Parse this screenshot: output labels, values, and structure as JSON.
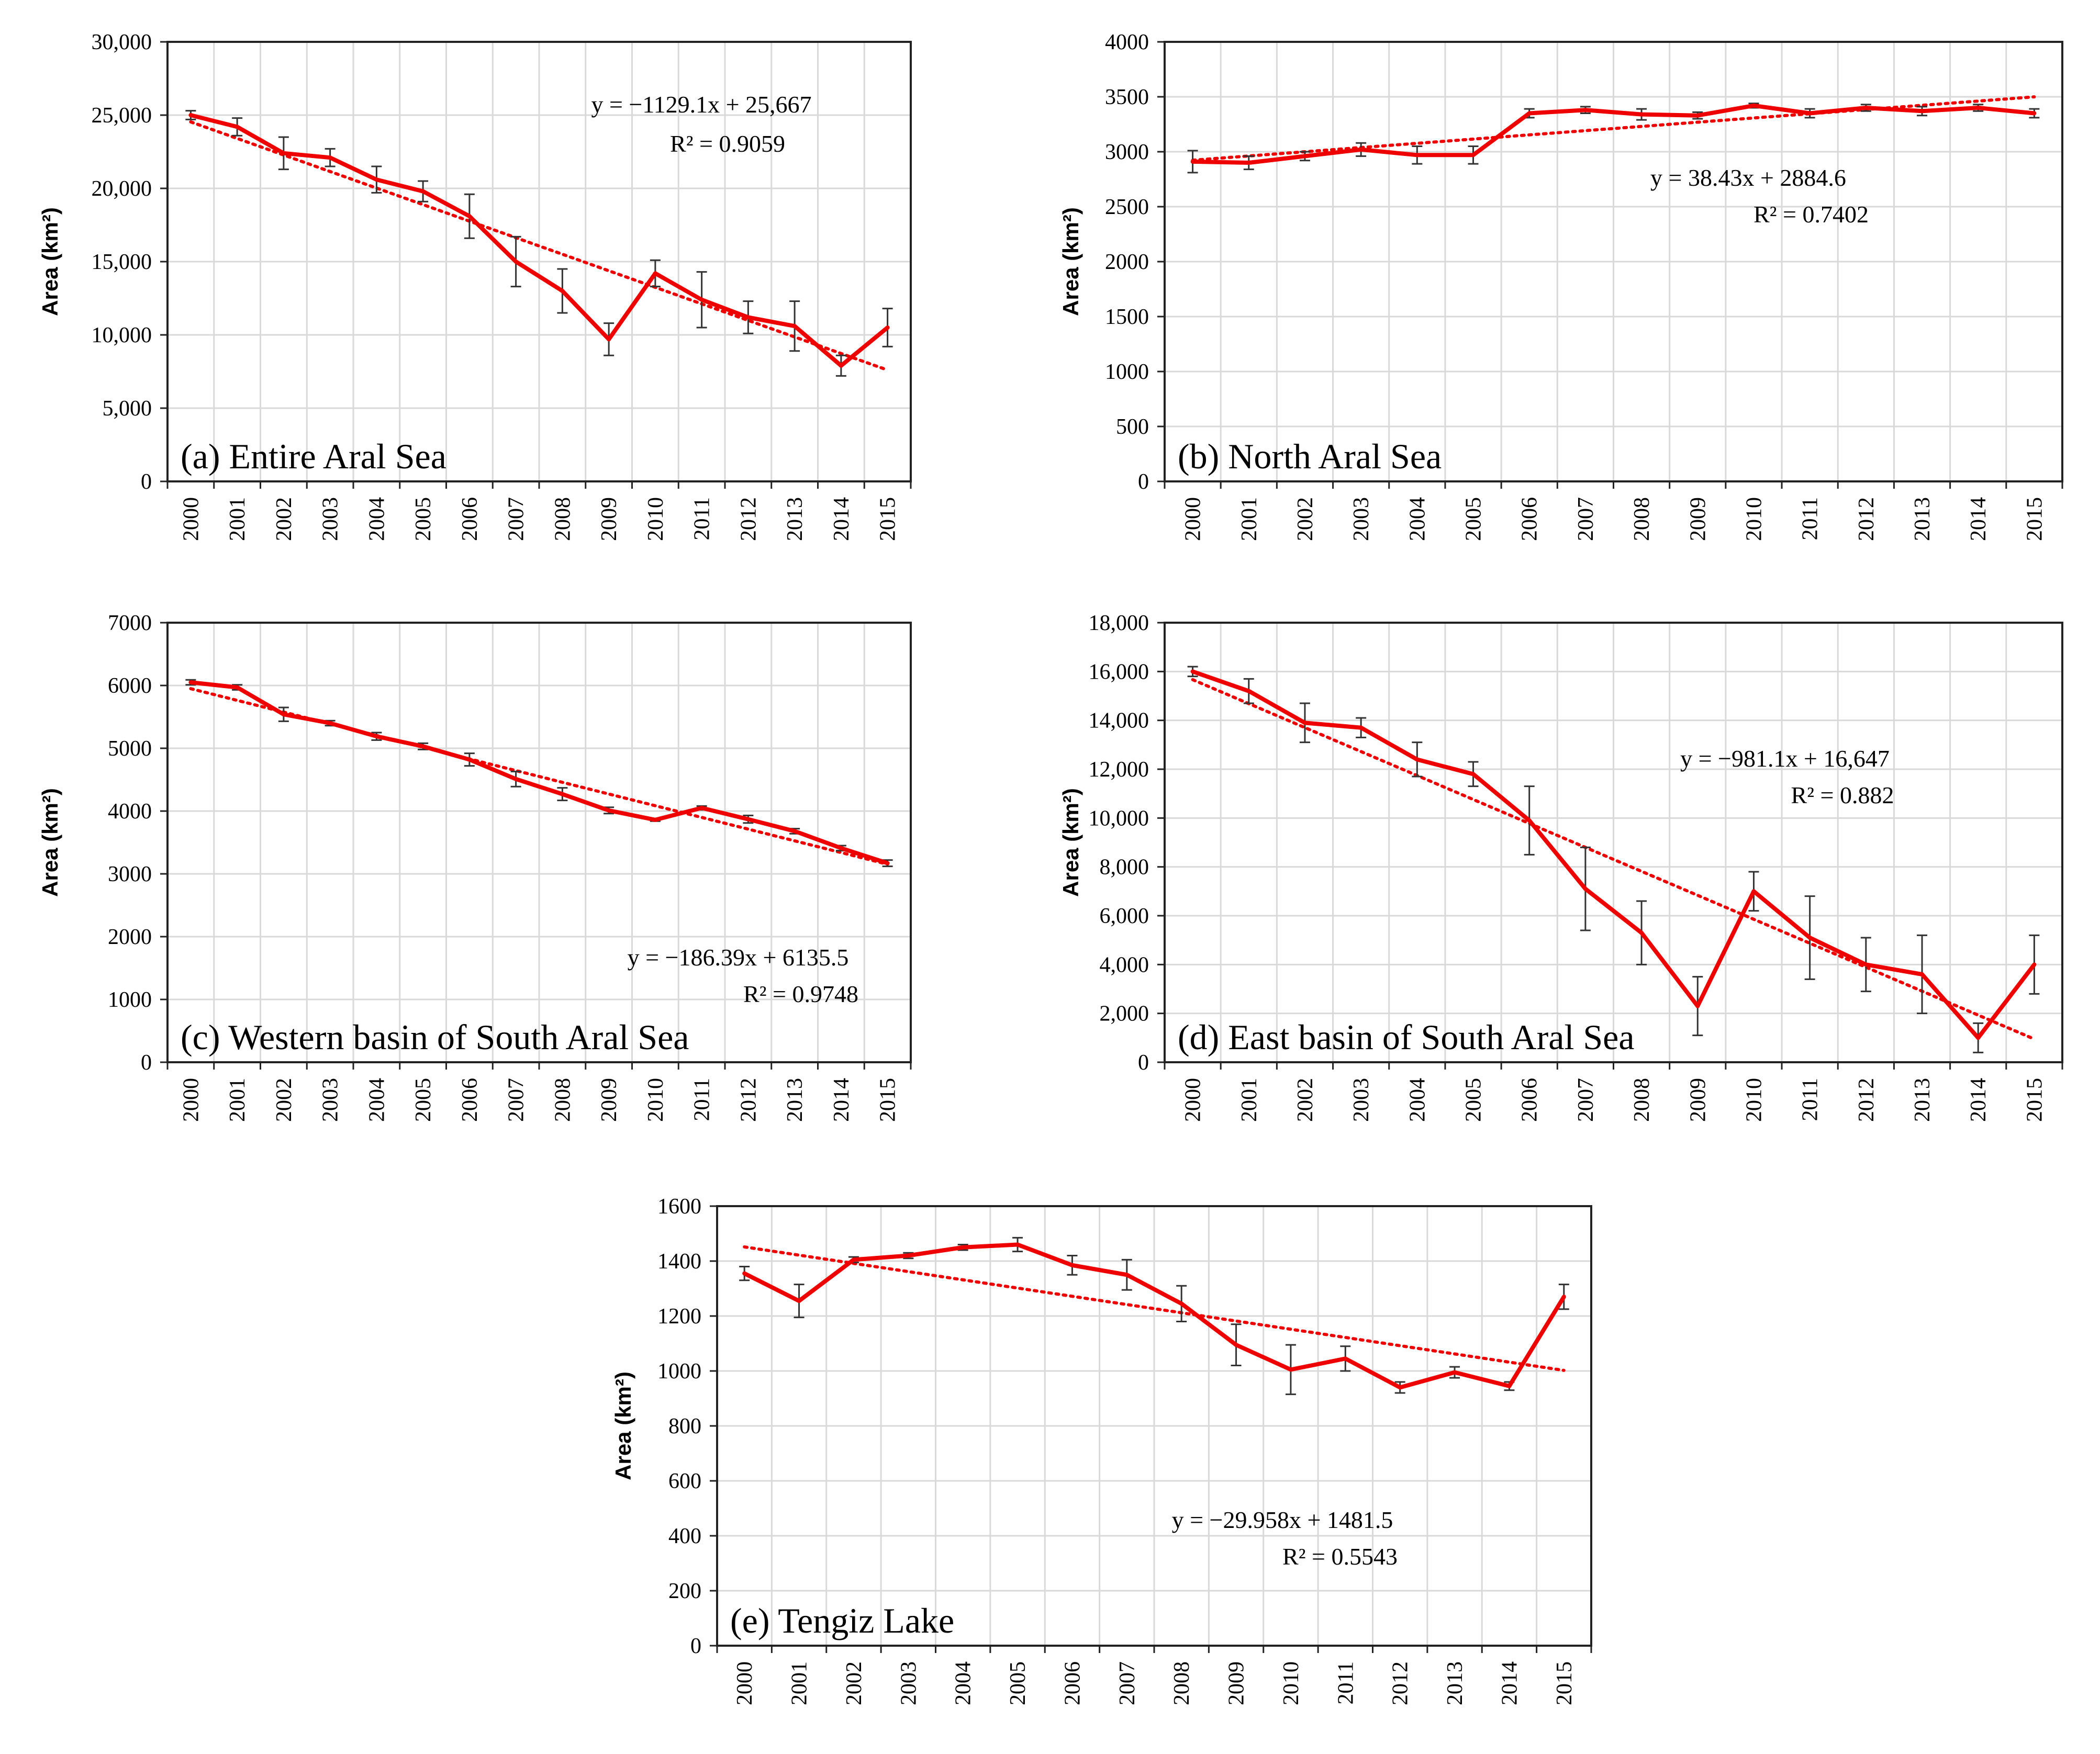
{
  "figure": {
    "colors": {
      "series": "#ee0000",
      "trend": "#ee0000",
      "errorbar": "#333333",
      "grid": "#d9d9d9",
      "frame": "#222222"
    }
  },
  "chart_data": [
    {
      "type": "line",
      "title": "(a) Entire Aral Sea",
      "xlabel": "",
      "ylabel": "Area  (km²)",
      "categories": [
        "2000",
        "2001",
        "2002",
        "2003",
        "2004",
        "2005",
        "2006",
        "2007",
        "2008",
        "2009",
        "2010",
        "2011",
        "2012",
        "2013",
        "2014",
        "2015"
      ],
      "ylim": [
        0,
        30000
      ],
      "yticks": [
        0,
        5000,
        10000,
        15000,
        20000,
        25000,
        30000
      ],
      "ytick_labels": [
        "0",
        "5,000",
        "10,000",
        "15,000",
        "20,000",
        "25,000",
        "30,000"
      ],
      "series": [
        {
          "name": "Area",
          "values": [
            25000,
            24200,
            22400,
            22100,
            20600,
            19800,
            18100,
            15000,
            13000,
            9700,
            14200,
            12400,
            11200,
            10600,
            7900,
            10500
          ]
        }
      ],
      "errors": [
        300,
        600,
        1100,
        600,
        900,
        700,
        1500,
        1700,
        1500,
        1100,
        900,
        1900,
        1100,
        1700,
        700,
        1300
      ],
      "trendline": {
        "slope": -1129.1,
        "intercept": 25667
      },
      "equation": "y = −1129.1x  + 25,667",
      "r2": "R² = 0.9059"
    },
    {
      "type": "line",
      "title": "(b) North Aral Sea",
      "xlabel": "",
      "ylabel": "Area  (km²)",
      "categories": [
        "2000",
        "2001",
        "2002",
        "2003",
        "2004",
        "2005",
        "2006",
        "2007",
        "2008",
        "2009",
        "2010",
        "2011",
        "2012",
        "2013",
        "2014",
        "2015"
      ],
      "ylim": [
        0,
        4000
      ],
      "yticks": [
        0,
        500,
        1000,
        1500,
        2000,
        2500,
        3000,
        3500,
        4000
      ],
      "ytick_labels": [
        "0",
        "500",
        "1000",
        "1500",
        "2000",
        "2500",
        "3000",
        "3500",
        "4000"
      ],
      "series": [
        {
          "name": "Area",
          "values": [
            2910,
            2900,
            2960,
            3020,
            2970,
            2970,
            3350,
            3380,
            3340,
            3330,
            3420,
            3350,
            3400,
            3370,
            3400,
            3350
          ]
        }
      ],
      "errors": [
        100,
        60,
        40,
        60,
        80,
        80,
        40,
        30,
        50,
        30,
        20,
        40,
        30,
        40,
        30,
        40
      ],
      "trendline": {
        "slope": 38.43,
        "intercept": 2884.6
      },
      "equation": "y = 38.43x + 2884.6",
      "r2": "R² = 0.7402"
    },
    {
      "type": "line",
      "title": "(c) Western basin of South Aral Sea",
      "xlabel": "",
      "ylabel": "Area  (km²)",
      "categories": [
        "2000",
        "2001",
        "2002",
        "2003",
        "2004",
        "2005",
        "2006",
        "2007",
        "2008",
        "2009",
        "2010",
        "2011",
        "2012",
        "2013",
        "2014",
        "2015"
      ],
      "ylim": [
        0,
        7000
      ],
      "yticks": [
        0,
        1000,
        2000,
        3000,
        4000,
        5000,
        6000,
        7000
      ],
      "ytick_labels": [
        "0",
        "1000",
        "2000",
        "3000",
        "4000",
        "5000",
        "6000",
        "7000"
      ],
      "series": [
        {
          "name": "Area",
          "values": [
            6050,
            5970,
            5540,
            5400,
            5190,
            5030,
            4820,
            4510,
            4270,
            4010,
            3860,
            4050,
            3870,
            3680,
            3410,
            3170
          ]
        }
      ],
      "errors": [
        40,
        40,
        110,
        40,
        60,
        50,
        100,
        120,
        100,
        50,
        20,
        30,
        60,
        40,
        40,
        50
      ],
      "trendline": {
        "slope": -186.39,
        "intercept": 6135.5
      },
      "equation": "y = −186.39x + 6135.5",
      "r2": "R² = 0.9748"
    },
    {
      "type": "line",
      "title": "(d) East basin of South Aral Sea",
      "xlabel": "",
      "ylabel": "Area  (km²)",
      "categories": [
        "2000",
        "2001",
        "2002",
        "2003",
        "2004",
        "2005",
        "2006",
        "2007",
        "2008",
        "2009",
        "2010",
        "2011",
        "2012",
        "2013",
        "2014",
        "2015"
      ],
      "ylim": [
        0,
        18000
      ],
      "yticks": [
        0,
        2000,
        4000,
        6000,
        8000,
        10000,
        12000,
        14000,
        16000,
        18000
      ],
      "ytick_labels": [
        "0",
        "2,000",
        "4,000",
        "6,000",
        "8,000",
        "10,000",
        "12,000",
        "14,000",
        "16,000",
        "18,000"
      ],
      "series": [
        {
          "name": "Area",
          "values": [
            16000,
            15200,
            13900,
            13700,
            12400,
            11800,
            9900,
            7100,
            5300,
            2300,
            7000,
            5100,
            4000,
            3600,
            1000,
            4000
          ]
        }
      ],
      "errors": [
        200,
        500,
        800,
        400,
        700,
        500,
        1400,
        1700,
        1300,
        1200,
        800,
        1700,
        1100,
        1600,
        600,
        1200
      ],
      "trendline": {
        "slope": -981.1,
        "intercept": 16647
      },
      "equation": "y = −981.1x + 16,647",
      "r2": "R² = 0.882"
    },
    {
      "type": "line",
      "title": "(e) Tengiz Lake",
      "xlabel": "",
      "ylabel": "Area  (km²)",
      "categories": [
        "2000",
        "2001",
        "2002",
        "2003",
        "2004",
        "2005",
        "2006",
        "2007",
        "2008",
        "2009",
        "2010",
        "2011",
        "2012",
        "2013",
        "2014",
        "2015"
      ],
      "ylim": [
        0,
        1600
      ],
      "yticks": [
        0,
        200,
        400,
        600,
        800,
        1000,
        1200,
        1400,
        1600
      ],
      "ytick_labels": [
        "0",
        "200",
        "400",
        "600",
        "800",
        "1000",
        "1200",
        "1400",
        "1600"
      ],
      "series": [
        {
          "name": "Area",
          "values": [
            1355,
            1255,
            1405,
            1420,
            1450,
            1460,
            1385,
            1350,
            1245,
            1095,
            1005,
            1045,
            940,
            995,
            945,
            1270
          ]
        }
      ],
      "errors": [
        25,
        60,
        10,
        10,
        10,
        25,
        35,
        55,
        65,
        75,
        90,
        45,
        20,
        20,
        15,
        45
      ],
      "trendline": {
        "slope": -29.958,
        "intercept": 1481.5
      },
      "equation": "y = −29.958x + 1481.5",
      "r2": "R² = 0.5543"
    }
  ]
}
